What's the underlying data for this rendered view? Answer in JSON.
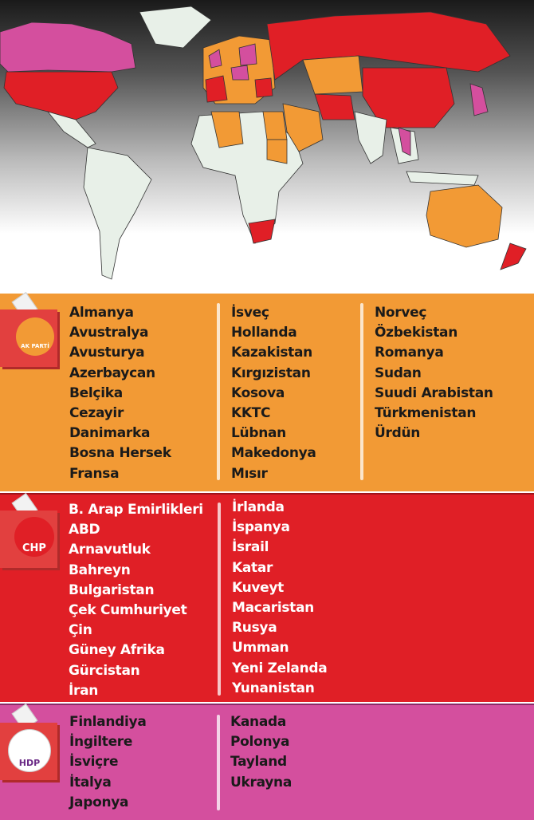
{
  "map": {
    "colors": {
      "ak_parti": "#f29a35",
      "chp": "#e01f26",
      "hdp": "#d44f9e",
      "other": "#e8f0e8"
    }
  },
  "parties": {
    "ak": {
      "logo_text": "AK PARTİ",
      "color": "#f29a35",
      "col1": [
        "Almanya",
        "Avustralya",
        "Avusturya",
        "Azerbaycan",
        "Belçika",
        "Cezayir",
        "Danimarka",
        "Bosna Hersek",
        "Fransa"
      ],
      "col2": [
        "İsveç",
        "Hollanda",
        "Kazakistan",
        "Kırgızistan",
        "Kosova",
        "KKTC",
        "Lübnan",
        "Makedonya",
        "Mısır"
      ],
      "col3": [
        "Norveç",
        "Özbekistan",
        "Romanya",
        "Sudan",
        "Suudi Arabistan",
        "Türkmenistan",
        "Ürdün"
      ]
    },
    "chp": {
      "logo_text": "CHP",
      "color": "#e01f26",
      "col1": [
        "B. Arap Emirlikleri",
        "ABD",
        "Arnavutluk",
        "Bahreyn",
        "Bulgaristan",
        "Çek Cumhuriyet",
        "Çin",
        "Güney Afrika",
        "Gürcistan",
        "İran"
      ],
      "col2": [
        "İrlanda",
        "İspanya",
        "İsrail",
        "Katar",
        "Kuveyt",
        "Macaristan",
        "Rusya",
        "Umman",
        "Yeni Zelanda",
        "Yunanistan"
      ]
    },
    "hdp": {
      "logo_text": "HDP",
      "color": "#d44f9e",
      "col1": [
        "Finlandiya",
        "İngiltere",
        "İsviçre",
        "İtalya",
        "Japonya"
      ],
      "col2": [
        "Kanada",
        "Polonya",
        "Tayland",
        "Ukrayna"
      ]
    }
  }
}
